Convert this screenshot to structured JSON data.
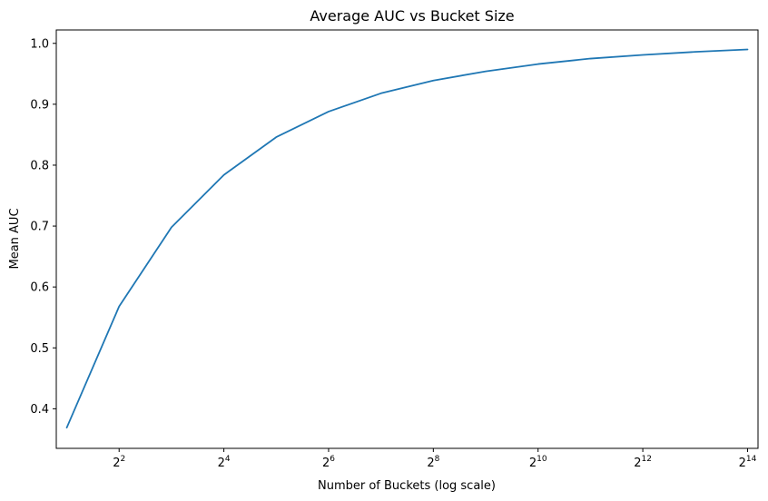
{
  "chart_data": {
    "type": "line",
    "title": "Average AUC vs Bucket Size",
    "xlabel": "Number of Buckets (log scale)",
    "ylabel": "Mean AUC",
    "x_scale": "log2",
    "xlim_exponent": [
      0.8,
      14.2
    ],
    "ylim": [
      0.335,
      1.022
    ],
    "x_ticks": [
      {
        "base": "2",
        "exp": "2",
        "value": 4
      },
      {
        "base": "2",
        "exp": "4",
        "value": 16
      },
      {
        "base": "2",
        "exp": "6",
        "value": 64
      },
      {
        "base": "2",
        "exp": "8",
        "value": 256
      },
      {
        "base": "2",
        "exp": "10",
        "value": 1024
      },
      {
        "base": "2",
        "exp": "12",
        "value": 4096
      },
      {
        "base": "2",
        "exp": "14",
        "value": 16384
      }
    ],
    "y_ticks": [
      "0.4",
      "0.5",
      "0.6",
      "0.7",
      "0.8",
      "0.9",
      "1.0"
    ],
    "grid": false,
    "series": [
      {
        "color": "#1f77b4",
        "x": [
          2,
          4,
          8,
          16,
          32,
          64,
          128,
          256,
          512,
          1024,
          2048,
          4096,
          8192,
          16384
        ],
        "y": [
          0.369,
          0.568,
          0.698,
          0.784,
          0.846,
          0.888,
          0.918,
          0.939,
          0.954,
          0.966,
          0.975,
          0.981,
          0.986,
          0.99
        ]
      }
    ]
  }
}
